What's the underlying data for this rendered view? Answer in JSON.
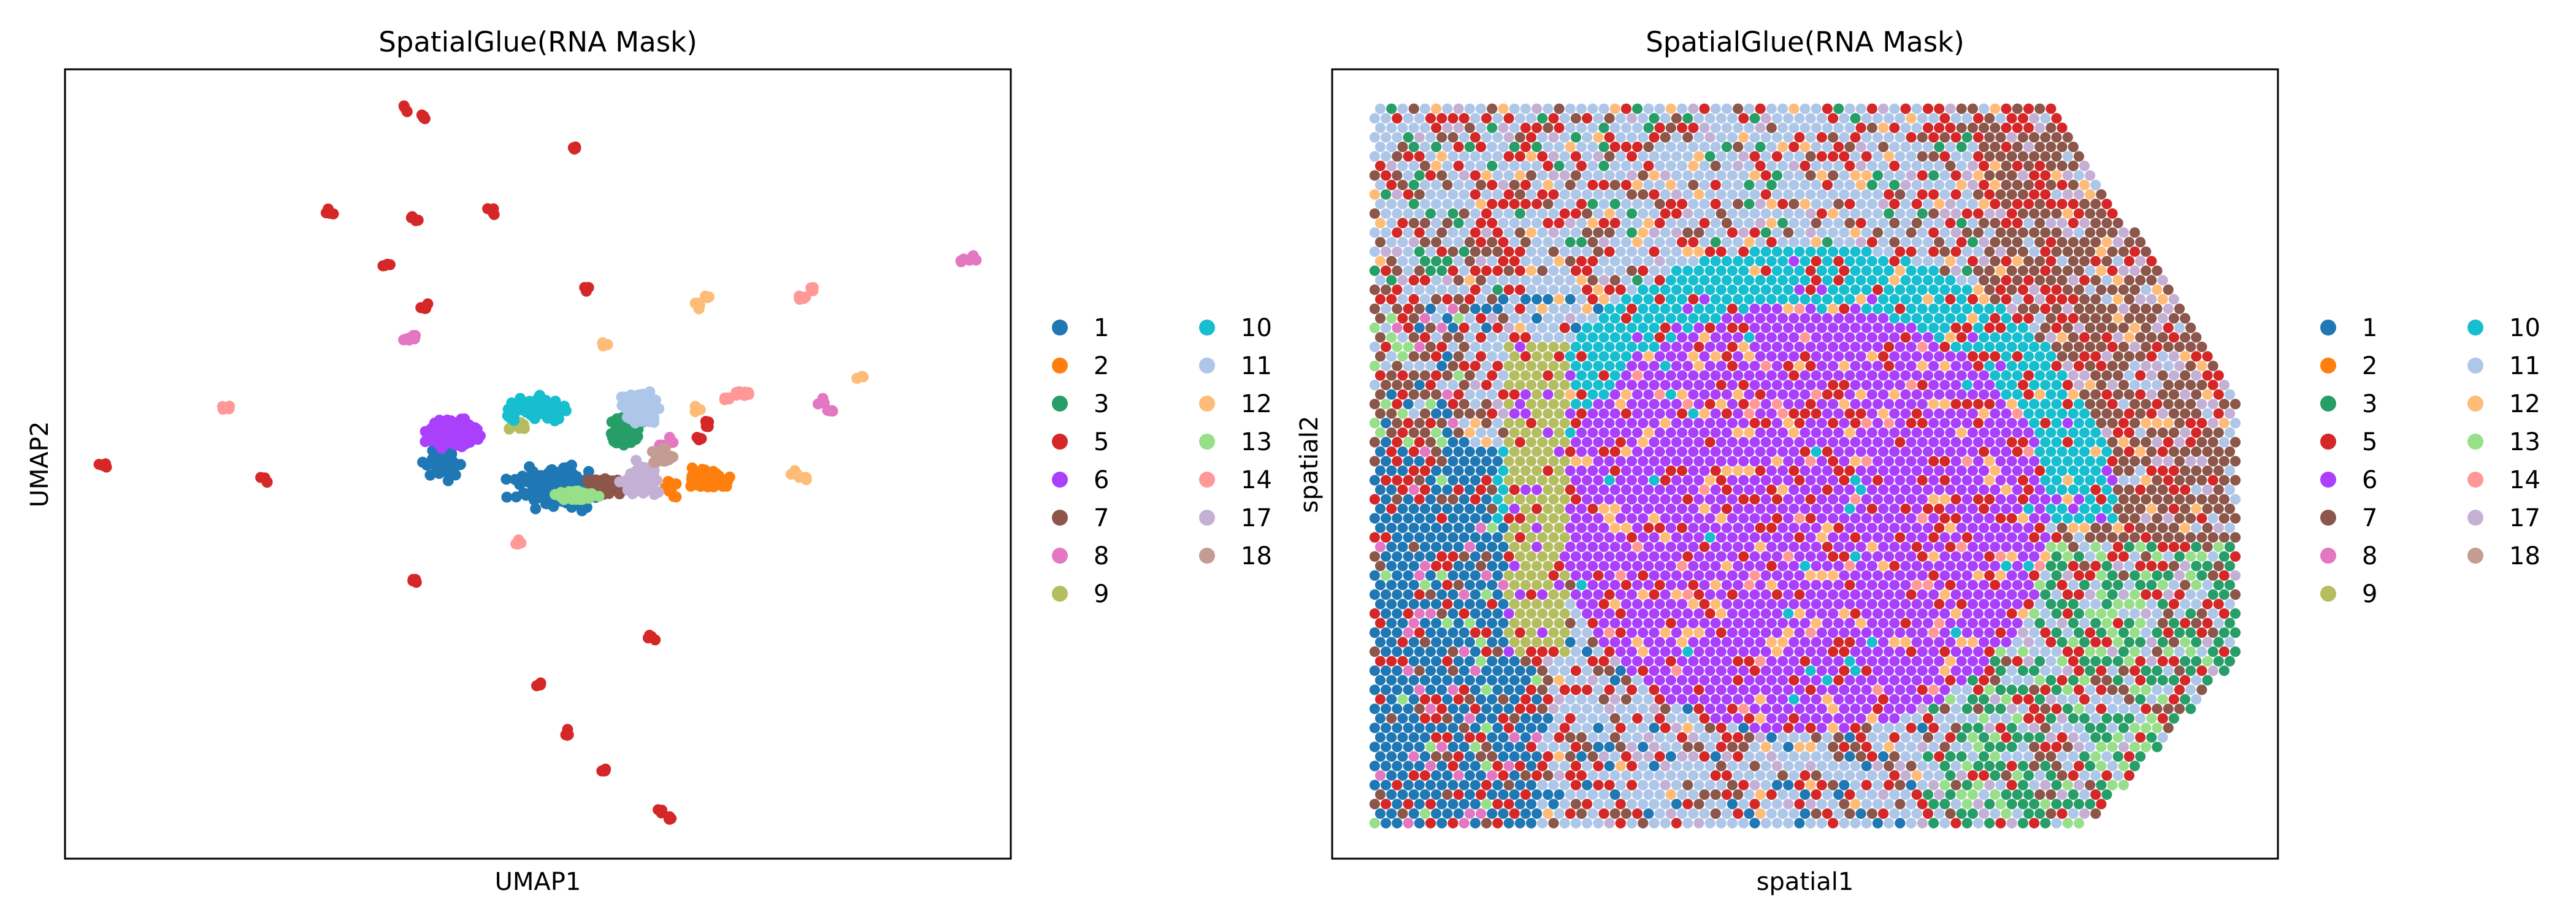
{
  "chart_data": [
    {
      "type": "scatter",
      "title": "SpatialGlue(RNA Mask)",
      "xlabel": "UMAP1",
      "ylabel": "UMAP2",
      "xlim": [
        0,
        100
      ],
      "ylim": [
        0,
        100
      ],
      "grid": false,
      "ticks": false,
      "legend_position": "right",
      "legend_columns": 2,
      "series": [
        {
          "name": "1",
          "color": "#1f77b4",
          "clusters": [
            [
              52,
              47,
              7,
              4,
              160
            ],
            [
              40,
              50,
              3,
              3,
              40
            ]
          ]
        },
        {
          "name": "2",
          "color": "#ff7f0e",
          "clusters": [
            [
              68,
              48,
              4,
              2,
              60
            ],
            [
              64,
              47,
              1,
              2,
              12
            ]
          ]
        },
        {
          "name": "3",
          "color": "#279e68",
          "clusters": [
            [
              59,
              54,
              3,
              3,
              60
            ]
          ]
        },
        {
          "name": "5",
          "color": "#d62728",
          "points": [
            [
              36,
              95
            ],
            [
              38,
              94
            ],
            [
              54,
              90
            ],
            [
              28,
              82
            ],
            [
              37,
              81
            ],
            [
              45,
              82
            ],
            [
              34,
              75
            ],
            [
              38,
              70
            ],
            [
              55,
              72
            ],
            [
              4,
              50
            ],
            [
              21,
              48
            ],
            [
              68,
              55
            ],
            [
              67,
              53
            ],
            [
              37,
              35
            ],
            [
              62,
              28
            ],
            [
              50,
              22
            ],
            [
              53,
              16
            ],
            [
              57,
              11
            ],
            [
              63,
              6
            ],
            [
              64,
              5
            ]
          ]
        },
        {
          "name": "6",
          "color": "#aa40fc",
          "clusters": [
            [
              41,
              54,
              4,
              3,
              220
            ]
          ]
        },
        {
          "name": "7",
          "color": "#8c564b",
          "clusters": [
            [
              57,
              47,
              3,
              2,
              90
            ]
          ]
        },
        {
          "name": "8",
          "color": "#e377c2",
          "points": [
            [
              95,
              76
            ],
            [
              96,
              76
            ],
            [
              36,
              66
            ],
            [
              37,
              66
            ],
            [
              80,
              58
            ],
            [
              81,
              57
            ],
            [
              63,
              52
            ],
            [
              64,
              53
            ]
          ]
        },
        {
          "name": "9",
          "color": "#b5bd61",
          "clusters": [
            [
              48,
              55,
              2,
              1,
              30
            ]
          ]
        },
        {
          "name": "10",
          "color": "#17becf",
          "clusters": [
            [
              50,
              57,
              5,
              2,
              120
            ]
          ]
        },
        {
          "name": "11",
          "color": "#aec7e8",
          "clusters": [
            [
              61,
              57,
              3,
              3,
              110
            ]
          ]
        },
        {
          "name": "12",
          "color": "#ffbb78",
          "points": [
            [
              67,
              70
            ],
            [
              68,
              71
            ],
            [
              57,
              65
            ],
            [
              84,
              61
            ],
            [
              77,
              49
            ],
            [
              78,
              48
            ],
            [
              67,
              57
            ]
          ]
        },
        {
          "name": "13",
          "color": "#98df8a",
          "clusters": [
            [
              54,
              46,
              3,
              1,
              60
            ]
          ]
        },
        {
          "name": "14",
          "color": "#ff9896",
          "points": [
            [
              78,
              71
            ],
            [
              79,
              72
            ],
            [
              70,
              58
            ],
            [
              71,
              59
            ],
            [
              72,
              59
            ],
            [
              17,
              57
            ],
            [
              48,
              40
            ]
          ]
        },
        {
          "name": "17",
          "color": "#c5b0d5",
          "clusters": [
            [
              61,
              48,
              3,
              3,
              80
            ]
          ]
        },
        {
          "name": "18",
          "color": "#c49c94",
          "clusters": [
            [
              63,
              51,
              2,
              2,
              30
            ]
          ]
        }
      ]
    },
    {
      "type": "scatter",
      "title": "SpatialGlue(RNA Mask)",
      "xlabel": "spatial1",
      "ylabel": "spatial2",
      "xlim": [
        0,
        100
      ],
      "ylim": [
        0,
        100
      ],
      "grid": false,
      "ticks": false,
      "legend_position": "right",
      "legend_columns": 2,
      "grid_spots": [
        78,
        76
      ],
      "series": [
        {
          "name": "1",
          "color": "#1f77b4"
        },
        {
          "name": "2",
          "color": "#ff7f0e"
        },
        {
          "name": "3",
          "color": "#279e68"
        },
        {
          "name": "5",
          "color": "#d62728"
        },
        {
          "name": "6",
          "color": "#aa40fc"
        },
        {
          "name": "7",
          "color": "#8c564b"
        },
        {
          "name": "8",
          "color": "#e377c2"
        },
        {
          "name": "9",
          "color": "#b5bd61"
        },
        {
          "name": "10",
          "color": "#17becf"
        },
        {
          "name": "11",
          "color": "#aec7e8"
        },
        {
          "name": "12",
          "color": "#ffbb78"
        },
        {
          "name": "13",
          "color": "#98df8a"
        },
        {
          "name": "14",
          "color": "#ff9896"
        },
        {
          "name": "17",
          "color": "#c5b0d5"
        },
        {
          "name": "18",
          "color": "#c49c94"
        }
      ]
    }
  ]
}
